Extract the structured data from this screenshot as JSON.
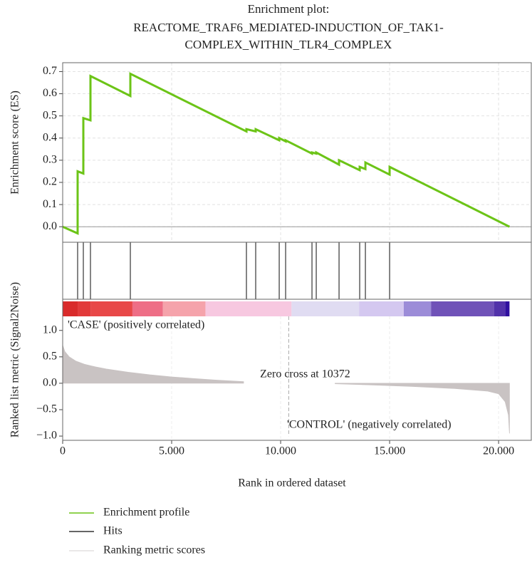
{
  "chart_data": {
    "type": "gsea",
    "title": [
      "Enrichment plot:",
      "REACTOME_TRAF6_MEDIATED-INDUCTION_OF_TAK1-",
      "COMPLEX_WITHIN_TLR4_COMPLEX"
    ],
    "xlabel": "Rank in ordered dataset",
    "ylabel_top": "Enrichment score (ES)",
    "ylabel_bottom": "Ranked list metric (Signal2Noise)",
    "xlim": [
      0,
      21500
    ],
    "xticks": [
      0,
      {
        "value": 5000,
        "label": "5.000"
      },
      {
        "value": 10000,
        "label": "10.000"
      },
      {
        "value": 15000,
        "label": "15.000"
      },
      {
        "value": 20000,
        "label": "20.000"
      }
    ],
    "ylim": [
      -0.07,
      0.74
    ],
    "yticks": [
      {
        "value": 0,
        "label": "0.0"
      },
      0.1,
      0.2,
      0.3,
      0.4,
      0.5,
      0.6,
      0.7
    ],
    "y2lim": [
      -1.08,
      1.59
    ],
    "y2ticks": [
      {
        "value": -1,
        "label": "−1.0"
      },
      {
        "value": -0.5,
        "label": "−0.5"
      },
      {
        "value": 0,
        "label": "0.0"
      },
      0.5,
      {
        "value": 1,
        "label": "1.0"
      }
    ],
    "grid": true,
    "es": {
      "name": "Enrichment profile",
      "color": "#6cc417",
      "x": [
        0,
        686,
        686,
        948,
        948,
        1275,
        1275,
        3105,
        3105,
        8431,
        8431,
        8856,
        8856,
        9935,
        9935,
        10229,
        10229,
        11438,
        11438,
        11634,
        11634,
        12680,
        12680,
        13627,
        13627,
        13889,
        13889,
        15000,
        15000,
        20500
      ],
      "values": [
        0,
        -0.03,
        0.25,
        0.24,
        0.49,
        0.48,
        0.68,
        0.59,
        0.69,
        0.43,
        0.44,
        0.43,
        0.44,
        0.39,
        0.4,
        0.385,
        0.39,
        0.33,
        0.335,
        0.33,
        0.335,
        0.28,
        0.3,
        0.255,
        0.27,
        0.26,
        0.29,
        0.235,
        0.27,
        0
      ]
    },
    "hits": {
      "name": "Hits",
      "color": "#333333",
      "x": [
        686,
        948,
        1275,
        3105,
        8431,
        8856,
        9935,
        10229,
        11438,
        11634,
        12680,
        13627,
        13889,
        15000
      ]
    },
    "color_bar": [
      {
        "start": 0,
        "end": 700,
        "color": "#d92b2b"
      },
      {
        "start": 700,
        "end": 1300,
        "color": "#e23a3a"
      },
      {
        "start": 1300,
        "end": 3200,
        "color": "#e84848"
      },
      {
        "start": 3200,
        "end": 4600,
        "color": "#ee6e86"
      },
      {
        "start": 4600,
        "end": 6550,
        "color": "#f5a3ab"
      },
      {
        "start": 6550,
        "end": 10500,
        "color": "#f7c8e0"
      },
      {
        "start": 10500,
        "end": 13600,
        "color": "#e0dcf2"
      },
      {
        "start": 13600,
        "end": 15650,
        "color": "#d4c8f0"
      },
      {
        "start": 15650,
        "end": 16900,
        "color": "#9c8cd8"
      },
      {
        "start": 16900,
        "end": 19800,
        "color": "#7052b8"
      },
      {
        "start": 19800,
        "end": 20300,
        "color": "#5232aa"
      },
      {
        "start": 20300,
        "end": 20500,
        "color": "#3010a0"
      }
    ],
    "metric": {
      "name": "Ranking metric scores",
      "color": "#c9c3c3",
      "x": [
        0,
        100,
        300,
        600,
        1000,
        1500,
        2000,
        3000,
        4000,
        5000,
        6000,
        7000,
        8300,
        10372,
        12500,
        14000,
        16000,
        18000,
        19500,
        20000,
        20300,
        20450,
        20500
      ],
      "values": [
        0.72,
        0.6,
        0.5,
        0.42,
        0.36,
        0.31,
        0.27,
        0.21,
        0.16,
        0.12,
        0.09,
        0.06,
        0.03,
        null,
        -0.01,
        -0.03,
        -0.06,
        -0.1,
        -0.15,
        -0.2,
        -0.35,
        -0.6,
        -0.95
      ]
    },
    "zero_cross": 10372,
    "zero_cross_label": "Zero cross at 10372",
    "case_label": "'CASE' (positively correlated)",
    "control_label": "'CONTROL' (negatively correlated)"
  }
}
